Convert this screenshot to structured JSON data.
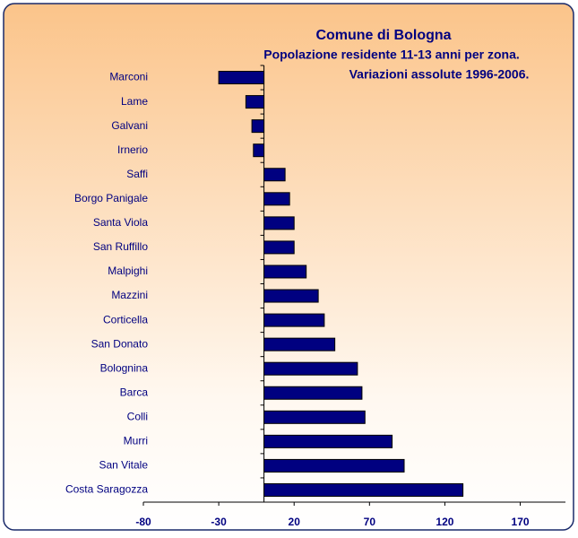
{
  "chart_data": {
    "type": "bar",
    "orientation": "horizontal",
    "title": "Comune di Bologna",
    "subtitle": [
      "Popolazione residente 11-13 anni per zona.",
      "Variazioni assolute 1996-2006."
    ],
    "categories": [
      "Marconi",
      "Lame",
      "Galvani",
      "Irnerio",
      "Saffi",
      "Borgo Panigale",
      "Santa Viola",
      "San Ruffillo",
      "Malpighi",
      "Mazzini",
      "Corticella",
      "San Donato",
      "Bolognina",
      "Barca",
      "Colli",
      "Murri",
      "San Vitale",
      "Costa Saragozza"
    ],
    "values": [
      -30,
      -12,
      -8,
      -7,
      14,
      17,
      20,
      20,
      28,
      36,
      40,
      47,
      62,
      65,
      67,
      85,
      93,
      132
    ],
    "color": "#000080",
    "xlim": [
      -80,
      200
    ],
    "xticks": [
      -80,
      -30,
      20,
      70,
      120,
      170
    ]
  }
}
